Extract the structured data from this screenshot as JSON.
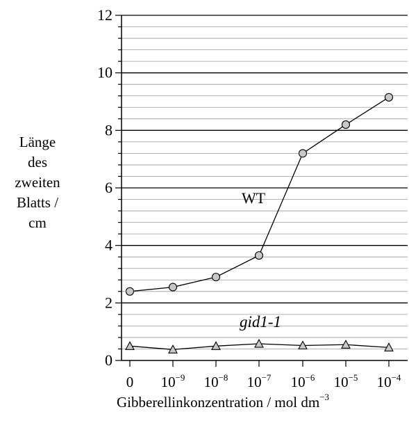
{
  "chart_data": {
    "type": "line",
    "ylabel_lines": [
      "Länge",
      "des",
      "zweiten",
      "Blatts /",
      "cm"
    ],
    "xlabel_text": "Gibberellinkonzentration / mol dm",
    "xlabel_unit_exp": "−3",
    "categories": [
      {
        "base": "0",
        "exp": ""
      },
      {
        "base": "10",
        "exp": "−9"
      },
      {
        "base": "10",
        "exp": "−8"
      },
      {
        "base": "10",
        "exp": "−7"
      },
      {
        "base": "10",
        "exp": "−6"
      },
      {
        "base": "10",
        "exp": "−5"
      },
      {
        "base": "10",
        "exp": "−4"
      }
    ],
    "yticks": [
      "0",
      "2",
      "4",
      "6",
      "8",
      "10",
      "12"
    ],
    "ylim": [
      0,
      12
    ],
    "minor_grid_step": 0.4,
    "major_grid_step": 2,
    "series": [
      {
        "name": "WT",
        "marker": "circle",
        "values": [
          2.4,
          2.55,
          2.9,
          3.65,
          7.2,
          8.2,
          9.15
        ]
      },
      {
        "name": "gid1-1",
        "marker": "triangle",
        "values": [
          0.5,
          0.38,
          0.5,
          0.58,
          0.52,
          0.55,
          0.45
        ]
      }
    ],
    "labels": {
      "WT": "WT",
      "gid1": "gid1-1"
    },
    "marker_fill": "#c8c8c8"
  }
}
